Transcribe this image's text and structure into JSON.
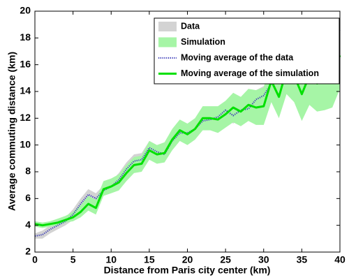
{
  "chart_data": {
    "type": "band-line",
    "xlabel": "Distance from Paris city center (km)",
    "ylabel": "Average commuting distance (km)",
    "xlim": [
      0,
      40
    ],
    "xticks": [
      0,
      5,
      10,
      15,
      20,
      25,
      30,
      35,
      40
    ],
    "ylim": [
      2,
      20
    ],
    "yticks": [
      2,
      4,
      6,
      8,
      10,
      12,
      14,
      16,
      18,
      20
    ],
    "legend": "upper right",
    "x": [
      0,
      1,
      2,
      3,
      4,
      5,
      6,
      7,
      8,
      9,
      10,
      11,
      12,
      13,
      14,
      15,
      16,
      17,
      18,
      19,
      20,
      21,
      22,
      23,
      24,
      25,
      26,
      27,
      28,
      29,
      30,
      31,
      32,
      33,
      34,
      35,
      36,
      37,
      38,
      39,
      40
    ],
    "series": [
      {
        "name": "Data",
        "kind": "band",
        "color": "#d3d3d3",
        "lower": [
          3.0,
          3.0,
          3.4,
          3.7,
          4.0,
          4.4,
          5.2,
          5.9,
          5.6,
          6.2,
          6.5,
          6.9,
          7.7,
          8.3,
          8.4,
          9.3,
          9.0,
          8.8,
          9.8,
          10.4,
          10.4,
          10.7,
          11.3,
          11.4,
          11.5,
          12.0,
          11.6,
          12.0,
          12.1,
          12.7,
          13.0,
          13.9,
          14.4,
          14.6,
          15.4,
          15.3,
          15.7,
          16.2,
          16.7,
          17.2,
          17.8
        ],
        "upper": [
          3.4,
          3.6,
          4.0,
          4.3,
          4.6,
          5.2,
          6.0,
          6.7,
          6.4,
          7.0,
          7.3,
          7.9,
          8.7,
          9.3,
          9.4,
          10.3,
          10.0,
          9.8,
          10.8,
          11.4,
          11.4,
          11.7,
          12.3,
          12.4,
          12.7,
          13.2,
          12.8,
          13.2,
          13.3,
          14.1,
          14.4,
          15.3,
          16.0,
          16.2,
          17.0,
          16.9,
          17.3,
          17.8,
          18.3,
          18.8,
          19.4
        ]
      },
      {
        "name": "Simulation",
        "kind": "band",
        "color": "#a6f5a6",
        "lower": [
          3.9,
          3.8,
          3.9,
          4.0,
          4.2,
          4.3,
          4.6,
          5.1,
          4.8,
          6.2,
          6.4,
          6.6,
          7.3,
          7.9,
          8.0,
          8.9,
          8.6,
          8.7,
          9.6,
          10.3,
          10.0,
          10.4,
          11.1,
          11.1,
          10.9,
          11.3,
          11.7,
          11.4,
          11.8,
          11.5,
          11.5,
          13.2,
          12.0,
          13.8,
          13.2,
          11.8,
          13.0,
          12.5,
          12.6,
          12.8,
          14.2
        ],
        "upper": [
          4.3,
          4.2,
          4.3,
          4.5,
          4.7,
          5.0,
          5.5,
          6.2,
          5.9,
          7.3,
          7.5,
          7.8,
          8.5,
          9.1,
          9.2,
          10.3,
          10.0,
          10.2,
          11.2,
          11.9,
          11.6,
          12.0,
          12.9,
          12.9,
          12.9,
          13.3,
          13.9,
          13.6,
          14.2,
          14.1,
          14.3,
          16.4,
          15.2,
          17.4,
          17.2,
          15.8,
          17.4,
          16.7,
          17.2,
          17.6,
          19.2
        ]
      },
      {
        "name": "Moving average of the data",
        "kind": "line",
        "style": "dotted",
        "color": "#3a3ab8",
        "values": [
          3.2,
          3.3,
          3.7,
          4.0,
          4.3,
          4.8,
          5.6,
          6.3,
          6.0,
          6.6,
          6.9,
          7.4,
          8.2,
          8.8,
          8.9,
          9.8,
          9.5,
          9.3,
          10.3,
          10.9,
          10.9,
          11.2,
          11.8,
          11.9,
          12.1,
          12.6,
          12.2,
          12.6,
          12.7,
          13.4,
          13.7,
          14.6,
          15.2,
          15.4,
          16.2,
          16.1,
          16.5,
          17.0,
          17.5,
          18.0,
          18.6
        ]
      },
      {
        "name": "Moving average of the simulation",
        "kind": "line",
        "style": "solid",
        "color": "#00e000",
        "values": [
          4.1,
          4.0,
          4.1,
          4.2,
          4.4,
          4.6,
          5.0,
          5.6,
          5.3,
          6.7,
          6.9,
          7.2,
          7.9,
          8.5,
          8.6,
          9.6,
          9.3,
          9.4,
          10.4,
          11.1,
          10.8,
          11.2,
          12.0,
          12.0,
          11.9,
          12.3,
          12.8,
          12.5,
          13.0,
          12.8,
          12.9,
          14.8,
          13.6,
          15.6,
          15.2,
          13.8,
          15.2,
          14.6,
          14.9,
          15.2,
          16.7
        ]
      }
    ]
  }
}
